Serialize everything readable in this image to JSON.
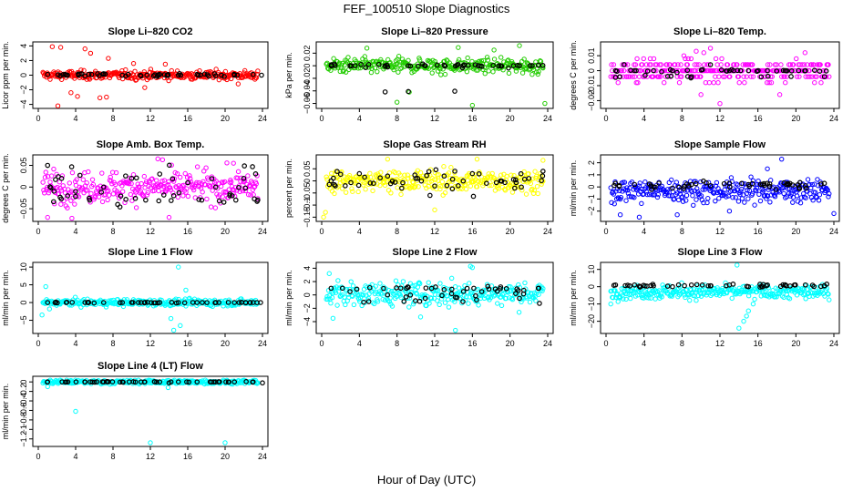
{
  "figure": {
    "title": "FEF_100510  Slope Diagnostics",
    "xlabel": "Hour of Day (UTC)"
  },
  "chart_data": [
    {
      "type": "scatter",
      "title": "Slope Li–820 CO2",
      "ylabel": "Licor ppm per min.",
      "color": "#ff0000",
      "xlim": [
        0,
        24
      ],
      "xticks": [
        "0",
        "4",
        "8",
        "12",
        "16",
        "20",
        "24"
      ],
      "yticks": [
        -4,
        -2,
        0,
        2,
        4
      ],
      "ylim": [
        -4.3,
        4.3
      ],
      "center": 0,
      "spread": 0.5,
      "outliers": [
        [
          1.5,
          3.9
        ],
        [
          2.4,
          3.8
        ],
        [
          5.0,
          3.6
        ],
        [
          5.6,
          3.0
        ],
        [
          4.2,
          -2.9
        ],
        [
          6.6,
          -3.1
        ],
        [
          7.3,
          -3.0
        ],
        [
          2.1,
          -4.2
        ],
        [
          3.5,
          -2.4
        ],
        [
          7.5,
          2.3
        ],
        [
          10.2,
          1.6
        ],
        [
          11.4,
          -1.7
        ],
        [
          13.6,
          1.5
        ],
        [
          21.4,
          -1.2
        ]
      ],
      "refs": [
        [
          1.0,
          0.1
        ],
        [
          3.0,
          0.0
        ],
        [
          5.0,
          -0.1
        ],
        [
          7.0,
          0.2
        ],
        [
          9.0,
          0.0
        ],
        [
          11.0,
          -0.1
        ],
        [
          13.0,
          0.1
        ],
        [
          15.0,
          0.0
        ],
        [
          17.0,
          0.1
        ],
        [
          19.0,
          -0.1
        ],
        [
          21.0,
          0.0
        ],
        [
          23.0,
          0.1
        ],
        [
          23.9,
          0.0
        ]
      ]
    },
    {
      "type": "scatter",
      "title": "Slope Li–820 Pressure",
      "ylabel": "kPa per min.",
      "color": "#22cc00",
      "xlim": [
        0,
        24
      ],
      "xticks": [
        "0",
        "4",
        "8",
        "12",
        "16",
        "20",
        "24"
      ],
      "yticks": [
        -0.06,
        -0.04,
        -0.02,
        0.0,
        0.02
      ],
      "ylim": [
        -0.065,
        0.035
      ],
      "center": 0.0,
      "spread": 0.01,
      "outliers": [
        [
          8.0,
          -0.058
        ],
        [
          9.3,
          -0.042
        ],
        [
          16.0,
          -0.063
        ],
        [
          23.7,
          -0.06
        ],
        [
          14.5,
          0.029
        ],
        [
          21.0,
          0.032
        ],
        [
          4.8,
          0.028
        ],
        [
          18.3,
          0.025
        ]
      ],
      "refs": [
        [
          1.0,
          0.0
        ],
        [
          3.0,
          0.0
        ],
        [
          5.0,
          0.002
        ],
        [
          7.0,
          -0.002
        ],
        [
          9.2,
          -0.041
        ],
        [
          11.0,
          0.0
        ],
        [
          13.0,
          0.001
        ],
        [
          15.0,
          0.0
        ],
        [
          17.0,
          -0.001
        ],
        [
          19.0,
          0.0
        ],
        [
          21.0,
          0.0
        ],
        [
          23.0,
          0.001
        ]
      ]
    },
    {
      "type": "scatter",
      "title": "Slope Li–820 Temp.",
      "ylabel": "degrees C per min.",
      "color": "#ff00ff",
      "xlim": [
        0,
        24
      ],
      "xticks": [
        "0",
        "4",
        "8",
        "12",
        "16",
        "20",
        "24"
      ],
      "yticks": [
        -0.02,
        -0.01,
        0.0,
        0.01
      ],
      "ylim": [
        -0.024,
        0.018
      ],
      "center": 0.0,
      "spread": 0.006,
      "quantum": 0.004,
      "outliers": [
        [
          9.5,
          0.013
        ],
        [
          10.3,
          0.012
        ],
        [
          11.0,
          0.015
        ],
        [
          10.0,
          -0.016
        ],
        [
          12.0,
          -0.022
        ],
        [
          8.2,
          0.01
        ],
        [
          18.3,
          -0.016
        ]
      ],
      "refs": [
        [
          1.0,
          0.0
        ],
        [
          3.0,
          0.0
        ],
        [
          5.0,
          0.0
        ],
        [
          7.0,
          0.0
        ],
        [
          9.0,
          -0.004
        ],
        [
          11.0,
          0.004
        ],
        [
          13.0,
          0.0
        ],
        [
          15.0,
          0.0
        ],
        [
          17.0,
          0.0
        ],
        [
          19.0,
          0.0
        ],
        [
          21.0,
          0.0
        ],
        [
          23.0,
          -0.004
        ]
      ]
    },
    {
      "type": "scatter",
      "title": "Slope Amb. Box Temp.",
      "ylabel": "degrees C per min.",
      "color": "#ff00ff",
      "xlim": [
        0,
        24
      ],
      "xticks": [
        "0",
        "4",
        "8",
        "12",
        "16",
        "20",
        "24"
      ],
      "yticks": [
        -0.05,
        0.0,
        0.05
      ],
      "ylim": [
        -0.075,
        0.07
      ],
      "center": 0.0,
      "spread": 0.03,
      "outliers": [
        [
          3.6,
          -0.072
        ],
        [
          12.8,
          0.065
        ],
        [
          13.3,
          0.063
        ],
        [
          14.0,
          -0.07
        ],
        [
          20.9,
          0.055
        ],
        [
          1.0,
          -0.07
        ]
      ],
      "refs": [
        [
          1.0,
          0.05
        ],
        [
          2.5,
          0.02
        ],
        [
          4.0,
          -0.01
        ],
        [
          5.5,
          -0.03
        ],
        [
          7.0,
          0.0
        ],
        [
          8.5,
          -0.04
        ],
        [
          10.0,
          0.02
        ],
        [
          11.5,
          -0.03
        ],
        [
          13.0,
          0.03
        ],
        [
          14.5,
          -0.02
        ],
        [
          16.0,
          0.01
        ],
        [
          17.5,
          -0.03
        ],
        [
          19.0,
          0.0
        ],
        [
          20.5,
          -0.02
        ],
        [
          22.0,
          0.02
        ],
        [
          23.5,
          -0.03
        ]
      ]
    },
    {
      "type": "scatter",
      "title": "Slope Gas Stream RH",
      "ylabel": "percent per min.",
      "color": "#ffff00",
      "xlim": [
        0,
        24
      ],
      "xticks": [
        "0",
        "4",
        "8",
        "12",
        "16",
        "20",
        "24"
      ],
      "yticks": [
        -0.15,
        -0.1,
        -0.05,
        0.0,
        0.05
      ],
      "ylim": [
        -0.16,
        0.1
      ],
      "center": 0.0,
      "spread": 0.04,
      "outliers": [
        [
          0.2,
          -0.15
        ],
        [
          0.4,
          -0.13
        ],
        [
          7.0,
          0.09
        ],
        [
          16.5,
          0.09
        ],
        [
          23.5,
          0.085
        ],
        [
          12.0,
          -0.12
        ]
      ],
      "refs": [
        [
          1.0,
          0.0
        ],
        [
          2.5,
          -0.02
        ],
        [
          4.0,
          0.03
        ],
        [
          5.5,
          -0.01
        ],
        [
          7.0,
          0.02
        ],
        [
          8.5,
          -0.03
        ],
        [
          10.0,
          0.01
        ],
        [
          11.5,
          -0.06
        ],
        [
          13.0,
          0.02
        ],
        [
          14.5,
          -0.02
        ],
        [
          16.0,
          0.03
        ],
        [
          17.5,
          -0.01
        ],
        [
          19.0,
          0.0
        ],
        [
          20.5,
          -0.03
        ],
        [
          22.0,
          0.01
        ],
        [
          23.5,
          0.04
        ]
      ]
    },
    {
      "type": "scatter",
      "title": "Slope Sample Flow",
      "ylabel": "ml/min per min.",
      "color": "#0000ff",
      "xlim": [
        0,
        24
      ],
      "xticks": [
        "0",
        "4",
        "8",
        "12",
        "16",
        "20",
        "24"
      ],
      "yticks": [
        -2,
        -1,
        0,
        1,
        2
      ],
      "ylim": [
        -2.7,
        2.5
      ],
      "center": -0.3,
      "spread": 0.8,
      "outliers": [
        [
          18.5,
          2.3
        ],
        [
          17.0,
          1.5
        ],
        [
          3.5,
          -2.5
        ],
        [
          1.5,
          -2.3
        ],
        [
          7.5,
          -2.3
        ],
        [
          24.0,
          -2.2
        ],
        [
          13.0,
          -2.0
        ]
      ],
      "refs": [
        [
          1.0,
          0.3
        ],
        [
          3.0,
          0.2
        ],
        [
          5.0,
          0.0
        ],
        [
          7.0,
          -0.1
        ],
        [
          9.0,
          0.2
        ],
        [
          11.0,
          0.1
        ],
        [
          13.0,
          0.3
        ],
        [
          15.0,
          0.2
        ],
        [
          17.0,
          0.3
        ],
        [
          19.0,
          0.2
        ],
        [
          21.0,
          0.1
        ],
        [
          23.0,
          0.3
        ]
      ]
    },
    {
      "type": "scatter",
      "title": "Slope Line 1 Flow",
      "ylabel": "ml/min per min.",
      "color": "#00ffff",
      "xlim": [
        0,
        24
      ],
      "xticks": [
        "0",
        "4",
        "8",
        "12",
        "16",
        "20",
        "24"
      ],
      "yticks": [
        -5,
        0,
        5,
        10
      ],
      "ylim": [
        -8.2,
        10.8
      ],
      "center": 0.0,
      "spread": 0.8,
      "outliers": [
        [
          15.0,
          10.0
        ],
        [
          14.5,
          -7.8
        ],
        [
          15.2,
          -6.5
        ],
        [
          14.2,
          -4.5
        ],
        [
          15.8,
          3.5
        ],
        [
          0.4,
          -3.5
        ],
        [
          0.8,
          4.5
        ],
        [
          1.2,
          -1.8
        ]
      ],
      "refs": [
        [
          1.0,
          0.0
        ],
        [
          3.0,
          0.0
        ],
        [
          5.0,
          0.0
        ],
        [
          7.0,
          0.0
        ],
        [
          9.0,
          0.0
        ],
        [
          11.0,
          0.0
        ],
        [
          13.0,
          0.0
        ],
        [
          15.0,
          0.0
        ],
        [
          17.0,
          0.0
        ],
        [
          19.0,
          0.0
        ],
        [
          21.0,
          0.0
        ],
        [
          23.0,
          0.0
        ],
        [
          23.8,
          0.0
        ]
      ]
    },
    {
      "type": "scatter",
      "title": "Slope Line 2 Flow",
      "ylabel": "ml/min per min.",
      "color": "#00ffff",
      "xlim": [
        0,
        24
      ],
      "xticks": [
        "0",
        "4",
        "8",
        "12",
        "16",
        "20",
        "24"
      ],
      "yticks": [
        -4,
        -2,
        0,
        2,
        4
      ],
      "ylim": [
        -5.5,
        4.6
      ],
      "center": 0.2,
      "spread": 1.5,
      "outliers": [
        [
          14.2,
          -5.3
        ],
        [
          15.8,
          4.3
        ],
        [
          16.0,
          4.1
        ],
        [
          1.2,
          -3.5
        ],
        [
          0.8,
          3.2
        ],
        [
          10.5,
          -3.3
        ]
      ],
      "refs": [
        [
          1.0,
          1.0
        ],
        [
          3.0,
          0.5
        ],
        [
          5.0,
          -1.0
        ],
        [
          7.0,
          0.0
        ],
        [
          9.0,
          1.0
        ],
        [
          11.0,
          -0.5
        ],
        [
          13.0,
          0.8
        ],
        [
          15.0,
          -1.0
        ],
        [
          17.0,
          0.5
        ],
        [
          19.0,
          1.2
        ],
        [
          21.0,
          -0.5
        ],
        [
          23.0,
          1.0
        ]
      ]
    },
    {
      "type": "scatter",
      "title": "Slope Line 3 Flow",
      "ylabel": "ml/min per min.",
      "color": "#00ffff",
      "xlim": [
        0,
        24
      ],
      "xticks": [
        "0",
        "4",
        "8",
        "12",
        "16",
        "20",
        "24"
      ],
      "yticks": [
        -20,
        -10,
        0,
        10
      ],
      "ylim": [
        -26,
        13
      ],
      "center": -3.0,
      "spread": 3.5,
      "outliers": [
        [
          14.0,
          -24.0
        ],
        [
          14.5,
          -20.0
        ],
        [
          14.8,
          -17.0
        ],
        [
          15.0,
          -14.0
        ],
        [
          13.8,
          12.5
        ],
        [
          15.5,
          -10.0
        ],
        [
          0.5,
          -10.0
        ]
      ],
      "refs": [
        [
          1.0,
          1.0
        ],
        [
          3.0,
          1.0
        ],
        [
          5.0,
          0.5
        ],
        [
          7.0,
          0.0
        ],
        [
          9.0,
          1.0
        ],
        [
          11.0,
          0.5
        ],
        [
          13.0,
          1.0
        ],
        [
          15.0,
          0.0
        ],
        [
          17.0,
          1.0
        ],
        [
          19.0,
          0.5
        ],
        [
          21.0,
          1.0
        ],
        [
          23.0,
          0.5
        ]
      ]
    },
    {
      "type": "scatter",
      "title": "Slope Line 4 (LT) Flow",
      "ylabel": "ml/min per min.",
      "color": "#00ffff",
      "xlim": [
        0,
        24
      ],
      "xticks": [
        "0",
        "4",
        "8",
        "12",
        "16",
        "20",
        "24"
      ],
      "yticks": [
        -1.2,
        -1.0,
        -0.8,
        -0.6,
        -0.4,
        -0.2,
        0.0
      ],
      "ylim": [
        -1.32,
        0.08
      ],
      "center": 0.0,
      "spread": 0.035,
      "outliers": [
        [
          4.0,
          -0.62
        ],
        [
          12.0,
          -1.28
        ],
        [
          20.0,
          -1.28
        ],
        [
          13.9,
          -0.12
        ],
        [
          1.0,
          -0.1
        ]
      ],
      "refs": [
        [
          1.0,
          0.0
        ],
        [
          3.0,
          0.0
        ],
        [
          5.0,
          0.0
        ],
        [
          7.0,
          0.0
        ],
        [
          9.0,
          0.0
        ],
        [
          11.0,
          0.0
        ],
        [
          13.0,
          0.0
        ],
        [
          15.0,
          0.0
        ],
        [
          17.0,
          0.0
        ],
        [
          19.0,
          0.0
        ],
        [
          21.0,
          0.0
        ],
        [
          23.0,
          0.0
        ],
        [
          24.0,
          -0.02
        ]
      ]
    }
  ]
}
